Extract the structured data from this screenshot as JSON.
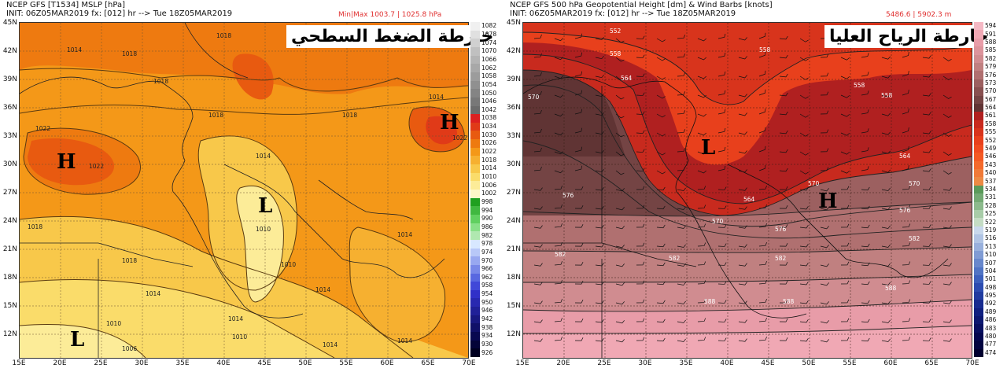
{
  "left_panel": {
    "header_line1": "NCEP GFS [T1534] MSLP [hPa]",
    "header_line2": "INIT: 06Z05MAR2019 fx: [012] hr --> Tue 18Z05MAR2019",
    "minmax": "Min|Max 1003.7 | 1025.8 hPa",
    "arabic_title": "خارطة الضغط السطحي",
    "lat_labels": [
      "45N",
      "42N",
      "39N",
      "36N",
      "33N",
      "30N",
      "27N",
      "24N",
      "21N",
      "18N",
      "15N",
      "12N"
    ],
    "lon_labels": [
      "15E",
      "20E",
      "25E",
      "30E",
      "35E",
      "40E",
      "45E",
      "50E",
      "55E",
      "60E",
      "65E",
      "70E"
    ],
    "colorbar_labels": [
      "1082",
      "1078",
      "1074",
      "1070",
      "1066",
      "1062",
      "1058",
      "1054",
      "1050",
      "1046",
      "1042",
      "1038",
      "1034",
      "1030",
      "1026",
      "1022",
      "1018",
      "1014",
      "1010",
      "1006",
      "1002",
      "998",
      "994",
      "990",
      "986",
      "982",
      "978",
      "974",
      "970",
      "966",
      "962",
      "958",
      "954",
      "950",
      "946",
      "942",
      "938",
      "934",
      "930",
      "926"
    ],
    "centers": [
      {
        "label": "H"
      },
      {
        "label": "H"
      },
      {
        "label": "L"
      },
      {
        "label": "L"
      }
    ],
    "isobar_labels": [
      "1018",
      "1014",
      "1018",
      "1018",
      "1022",
      "1022",
      "1018",
      "1014",
      "1018",
      "1014",
      "1022",
      "1018",
      "1010",
      "1010",
      "1014",
      "1014",
      "1018",
      "1014",
      "1014",
      "1010",
      "1006",
      "1014",
      "1010",
      "1014"
    ]
  },
  "right_panel": {
    "header_line1": "NCEP GFS 500 hPa Geopotential Height [dm] & Wind Barbs [knots]",
    "header_line2": "INIT: 06Z05MAR2019 fx: [012] hr --> Tue 18Z05MAR2019",
    "minmax": "5486.6 | 5902.3 m",
    "arabic_title": "خارطة الرياح العليا",
    "lat_labels": [
      "45N",
      "42N",
      "39N",
      "36N",
      "33N",
      "30N",
      "27N",
      "24N",
      "21N",
      "18N",
      "15N",
      "12N"
    ],
    "lon_labels": [
      "15E",
      "20E",
      "25E",
      "30E",
      "35E",
      "40E",
      "45E",
      "50E",
      "55E",
      "60E",
      "65E",
      "70E"
    ],
    "colorbar_labels": [
      "594",
      "591",
      "588",
      "585",
      "582",
      "579",
      "576",
      "573",
      "570",
      "567",
      "564",
      "561",
      "558",
      "555",
      "552",
      "549",
      "546",
      "543",
      "540",
      "537",
      "534",
      "531",
      "528",
      "525",
      "522",
      "519",
      "516",
      "513",
      "510",
      "507",
      "504",
      "501",
      "498",
      "495",
      "492",
      "489",
      "486",
      "483",
      "480",
      "477",
      "474"
    ],
    "centers": [
      {
        "label": "L"
      },
      {
        "label": "H"
      }
    ],
    "contour_labels": [
      "552",
      "558",
      "558",
      "564",
      "570",
      "558",
      "558",
      "564",
      "564",
      "570",
      "570",
      "576",
      "570",
      "576",
      "576",
      "582",
      "582",
      "582",
      "582",
      "588",
      "588",
      "588"
    ]
  },
  "colors": {
    "mslp_colorbar": [
      "#f0f0f0",
      "#e0e0e0",
      "#d0d0d0",
      "#c0c0c0",
      "#b4b4b4",
      "#a8a8a8",
      "#9c9c9c",
      "#909090",
      "#848484",
      "#787878",
      "#6c6c6c",
      "#dc2020",
      "#e03a18",
      "#e85a10",
      "#ee7a10",
      "#f49818",
      "#f6b030",
      "#f8c84a",
      "#fadc6a",
      "#fcec98",
      "#fef8c8",
      "#20a020",
      "#40b840",
      "#60d060",
      "#88e088",
      "#b0e8b0",
      "#d8e8ff",
      "#b8c8f8",
      "#98a8f0",
      "#7888e8",
      "#5868e0",
      "#4048d8",
      "#3030c8",
      "#2828b0",
      "#202098",
      "#181880",
      "#101068",
      "#080850",
      "#040438",
      "#000020"
    ],
    "hgt_colorbar": [
      "#f4b8c4",
      "#f0a8b4",
      "#e89ca8",
      "#dc949c",
      "#d08c90",
      "#c08080",
      "#b07070",
      "#9c6060",
      "#885050",
      "#744444",
      "#603434",
      "#b02020",
      "#c82a1e",
      "#d8341c",
      "#e8401c",
      "#f04c20",
      "#f45a24",
      "#f46a2c",
      "#f07a38",
      "#ec8a44",
      "#5a9a5a",
      "#74aa74",
      "#8cba8c",
      "#a8cca8",
      "#c4dcc4",
      "#c8d8ec",
      "#b0c4e4",
      "#98b0dc",
      "#809cd4",
      "#6888cc",
      "#5074c4",
      "#3c60bc",
      "#2c4cb0",
      "#203ca0",
      "#182c90",
      "#102080",
      "#0c1870",
      "#081060",
      "#040850",
      "#020440",
      "#000030"
    ]
  }
}
